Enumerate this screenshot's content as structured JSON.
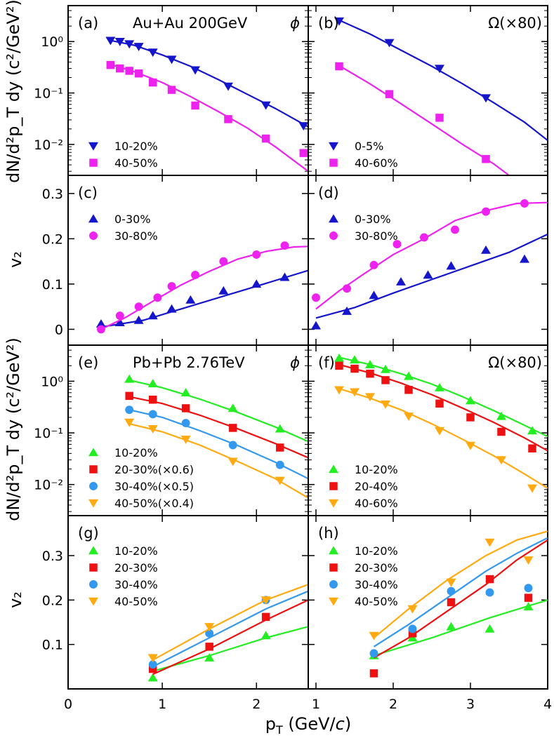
{
  "figure": {
    "xlabel_main": "p",
    "xlabel_sub": "T",
    "xlabel_unit_pre": " (GeV/",
    "xlabel_unit_italic": "c",
    "xlabel_unit_post": ")",
    "ylabel_spectra": "dN/d²p_T dy (c²/GeV²)",
    "ylabel_v2": "v₂"
  },
  "chart_data": [
    {
      "id": "a",
      "type": "scatter",
      "yscale": "log",
      "ylim": [
        0.0025,
        5
      ],
      "xlim": [
        0,
        2.55
      ],
      "yticks": [
        0.01,
        0.1,
        1
      ],
      "ytick_labels": [
        "10⁻²",
        "10⁻¹",
        "10⁰"
      ],
      "letter": "(a)",
      "title": "Au+Au 200GeV",
      "particle": "ϕ",
      "legend_pos": "bottom-left",
      "series": [
        {
          "name": "10-20%",
          "marker": "tri_down",
          "color": "#1515cc",
          "x": [
            0.45,
            0.55,
            0.65,
            0.75,
            0.9,
            1.1,
            1.35,
            1.7,
            2.1,
            2.5
          ],
          "y": [
            1.05,
            1.0,
            0.9,
            0.8,
            0.62,
            0.45,
            0.28,
            0.135,
            0.058,
            0.023
          ],
          "fit_x": [
            0.45,
            0.7,
            1.0,
            1.3,
            1.6,
            1.9,
            2.2,
            2.55
          ],
          "fit_y": [
            1.05,
            0.85,
            0.55,
            0.33,
            0.18,
            0.095,
            0.05,
            0.022
          ]
        },
        {
          "name": "40-50%",
          "marker": "square",
          "color": "#ee22ee",
          "x": [
            0.45,
            0.55,
            0.65,
            0.75,
            0.9,
            1.1,
            1.35,
            1.7,
            2.1,
            2.5
          ],
          "y": [
            0.35,
            0.3,
            0.27,
            0.24,
            0.16,
            0.115,
            0.057,
            0.031,
            0.013,
            0.0068
          ],
          "fit_x": [
            0.45,
            0.7,
            1.0,
            1.3,
            1.6,
            1.9,
            2.2,
            2.55
          ],
          "fit_y": [
            0.36,
            0.26,
            0.16,
            0.085,
            0.043,
            0.021,
            0.009,
            0.003
          ]
        }
      ]
    },
    {
      "id": "b",
      "type": "scatter",
      "yscale": "log",
      "ylim": [
        0.0025,
        5
      ],
      "xlim": [
        0.9,
        4
      ],
      "yticks": [
        0.01,
        0.1,
        1
      ],
      "ytick_labels": [],
      "letter": "(b)",
      "title": "Ω(×80)",
      "particle": "",
      "legend_pos": "bottom-left",
      "series": [
        {
          "name": "0-5%",
          "marker": "tri_down",
          "color": "#1515cc",
          "x": [
            1.3,
            1.95,
            2.6,
            3.2
          ],
          "y": [
            2.5,
            0.95,
            0.3,
            0.08
          ],
          "fit_x": [
            1.3,
            1.7,
            2.1,
            2.5,
            2.9,
            3.3,
            3.7,
            4.0
          ],
          "fit_y": [
            2.6,
            1.4,
            0.68,
            0.33,
            0.15,
            0.065,
            0.027,
            0.012
          ]
        },
        {
          "name": "40-60%",
          "marker": "square",
          "color": "#ee22ee",
          "x": [
            1.3,
            1.95,
            2.6,
            3.2
          ],
          "y": [
            0.33,
            0.095,
            0.033,
            0.0052
          ],
          "fit_x": [
            1.3,
            1.7,
            2.1,
            2.5,
            2.9,
            3.3,
            3.5
          ],
          "fit_y": [
            0.34,
            0.15,
            0.062,
            0.025,
            0.01,
            0.0042,
            0.0025
          ]
        }
      ]
    },
    {
      "id": "c",
      "type": "scatter",
      "yscale": "linear",
      "ylim": [
        -0.035,
        0.34
      ],
      "xlim": [
        0,
        2.55
      ],
      "yticks": [
        0,
        0.1,
        0.2,
        0.3
      ],
      "ytick_labels": [
        "0",
        "0.1",
        "0.2",
        "0.3"
      ],
      "letter": "(c)",
      "title": "",
      "particle": "",
      "legend_pos": "top-left",
      "series": [
        {
          "name": "0-30%",
          "marker": "tri_up",
          "color": "#1515cc",
          "x": [
            0.35,
            0.55,
            0.75,
            0.9,
            1.1,
            1.3,
            1.65,
            2.0,
            2.3
          ],
          "y": [
            0.012,
            0.015,
            0.02,
            0.03,
            0.045,
            0.065,
            0.085,
            0.1,
            0.115
          ],
          "fit_x": [
            0.35,
            0.8,
            1.2,
            1.6,
            2.0,
            2.55
          ],
          "fit_y": [
            0.005,
            0.02,
            0.045,
            0.07,
            0.095,
            0.13
          ]
        },
        {
          "name": "30-80%",
          "marker": "circle",
          "color": "#ee22ee",
          "x": [
            0.35,
            0.55,
            0.75,
            0.95,
            1.1,
            1.35,
            1.65,
            2.0,
            2.3
          ],
          "y": [
            0.0,
            0.03,
            0.05,
            0.07,
            0.095,
            0.12,
            0.15,
            0.165,
            0.185
          ],
          "fit_x": [
            0.35,
            0.6,
            0.9,
            1.2,
            1.5,
            1.8,
            2.1,
            2.4,
            2.55
          ],
          "fit_y": [
            0.0,
            0.025,
            0.062,
            0.098,
            0.128,
            0.155,
            0.172,
            0.182,
            0.183
          ]
        }
      ]
    },
    {
      "id": "d",
      "type": "scatter",
      "yscale": "linear",
      "ylim": [
        -0.035,
        0.34
      ],
      "xlim": [
        0.9,
        4
      ],
      "yticks": [
        0,
        0.1,
        0.2,
        0.3
      ],
      "ytick_labels": [],
      "letter": "(d)",
      "title": "",
      "particle": "",
      "legend_pos": "top-left",
      "series": [
        {
          "name": "0-30%",
          "marker": "tri_up",
          "color": "#1515cc",
          "x": [
            1.0,
            1.4,
            1.75,
            2.1,
            2.45,
            2.75,
            3.2,
            3.7
          ],
          "y": [
            0.008,
            0.04,
            0.075,
            0.105,
            0.12,
            0.14,
            0.175,
            0.155
          ],
          "fit_x": [
            1.0,
            1.5,
            2.0,
            2.5,
            3.0,
            3.5,
            4.0
          ],
          "fit_y": [
            0.025,
            0.048,
            0.08,
            0.11,
            0.14,
            0.17,
            0.21
          ]
        },
        {
          "name": "30-80%",
          "marker": "circle",
          "color": "#ee22ee",
          "x": [
            1.0,
            1.4,
            1.75,
            2.05,
            2.4,
            2.8,
            3.2,
            3.7
          ],
          "y": [
            0.07,
            0.09,
            0.142,
            0.188,
            0.203,
            0.22,
            0.26,
            0.278
          ],
          "fit_x": [
            1.0,
            1.3,
            1.6,
            2.0,
            2.4,
            2.8,
            3.2,
            3.6,
            4.0
          ],
          "fit_y": [
            0.045,
            0.085,
            0.12,
            0.165,
            0.2,
            0.24,
            0.262,
            0.278,
            0.28
          ]
        }
      ]
    },
    {
      "id": "e",
      "type": "scatter",
      "yscale": "log",
      "ylim": [
        0.0025,
        5
      ],
      "xlim": [
        0,
        2.55
      ],
      "yticks": [
        0.01,
        0.1,
        1
      ],
      "ytick_labels": [
        "10⁻²",
        "10⁻¹",
        "10⁰"
      ],
      "letter": "(e)",
      "title": "Pb+Pb 2.76TeV",
      "particle": "ϕ",
      "legend_pos": "bottom-left",
      "series": [
        {
          "name": "10-20%",
          "marker": "tri_up",
          "color": "#22ee22",
          "x": [
            0.65,
            0.9,
            1.25,
            1.75,
            2.25
          ],
          "y": [
            1.1,
            0.9,
            0.6,
            0.3,
            0.12
          ],
          "fit_x": [
            0.65,
            1.0,
            1.4,
            1.8,
            2.2,
            2.55
          ],
          "fit_y": [
            1.05,
            0.75,
            0.45,
            0.25,
            0.13,
            0.068
          ]
        },
        {
          "name": "20-30%(×0.6)",
          "marker": "square",
          "color": "#ee1111",
          "x": [
            0.65,
            0.9,
            1.25,
            1.75,
            2.25
          ],
          "y": [
            0.52,
            0.44,
            0.3,
            0.125,
            0.052
          ],
          "fit_x": [
            0.65,
            1.0,
            1.4,
            1.8,
            2.2,
            2.55
          ],
          "fit_y": [
            0.5,
            0.37,
            0.22,
            0.12,
            0.062,
            0.033
          ]
        },
        {
          "name": "30-40%(×0.5)",
          "marker": "circle",
          "color": "#3399ee",
          "x": [
            0.65,
            0.9,
            1.25,
            1.75,
            2.25
          ],
          "y": [
            0.28,
            0.23,
            0.155,
            0.058,
            0.024
          ],
          "fit_x": [
            0.65,
            1.0,
            1.4,
            1.8,
            2.2,
            2.55
          ],
          "fit_y": [
            0.28,
            0.2,
            0.11,
            0.057,
            0.027,
            0.013
          ]
        },
        {
          "name": "40-50%(×0.4)",
          "marker": "tri_down",
          "color": "#ffaa11",
          "x": [
            0.65,
            0.9,
            1.25,
            1.75,
            2.25
          ],
          "y": [
            0.16,
            0.12,
            0.075,
            0.028,
            0.012
          ],
          "fit_x": [
            0.65,
            1.0,
            1.4,
            1.8,
            2.2,
            2.55
          ],
          "fit_y": [
            0.15,
            0.105,
            0.058,
            0.028,
            0.013,
            0.0055
          ]
        }
      ]
    },
    {
      "id": "f",
      "type": "scatter",
      "yscale": "log",
      "ylim": [
        0.0025,
        5
      ],
      "xlim": [
        0.9,
        4
      ],
      "yticks": [
        0.01,
        0.1,
        1
      ],
      "ytick_labels": [],
      "letter": "(f)",
      "title": "Ω(×80)",
      "particle": "",
      "legend_pos": "bottom-left",
      "series": [
        {
          "name": "10-20%",
          "marker": "tri_up",
          "color": "#22ee22",
          "x": [
            1.3,
            1.5,
            1.7,
            1.9,
            2.2,
            2.6,
            3.0,
            3.4,
            3.8
          ],
          "y": [
            2.8,
            2.6,
            2.1,
            1.7,
            1.25,
            0.75,
            0.42,
            0.21,
            0.11
          ],
          "fit_x": [
            1.3,
            1.7,
            2.1,
            2.5,
            2.9,
            3.3,
            3.7,
            4.0
          ],
          "fit_y": [
            2.9,
            2.1,
            1.4,
            0.88,
            0.5,
            0.27,
            0.14,
            0.085
          ]
        },
        {
          "name": "20-40%",
          "marker": "square",
          "color": "#ee1111",
          "x": [
            1.3,
            1.5,
            1.7,
            1.9,
            2.2,
            2.6,
            3.0,
            3.4,
            3.8
          ],
          "y": [
            2.0,
            1.75,
            1.4,
            1.05,
            0.68,
            0.37,
            0.2,
            0.105,
            0.05
          ],
          "fit_x": [
            1.3,
            1.7,
            2.1,
            2.5,
            2.9,
            3.3,
            3.7,
            4.0
          ],
          "fit_y": [
            2.1,
            1.45,
            0.92,
            0.55,
            0.3,
            0.16,
            0.08,
            0.045
          ]
        },
        {
          "name": "40-60%",
          "marker": "tri_down",
          "color": "#ffaa11",
          "x": [
            1.3,
            1.5,
            1.7,
            1.9,
            2.2,
            2.6,
            3.0,
            3.4,
            3.8
          ],
          "y": [
            0.68,
            0.62,
            0.5,
            0.36,
            0.21,
            0.11,
            0.057,
            0.03,
            0.0085
          ],
          "fit_x": [
            1.3,
            1.7,
            2.1,
            2.5,
            2.9,
            3.3,
            3.7,
            4.0
          ],
          "fit_y": [
            0.72,
            0.47,
            0.28,
            0.15,
            0.075,
            0.036,
            0.016,
            0.0085
          ]
        }
      ]
    },
    {
      "id": "g",
      "type": "scatter",
      "yscale": "linear",
      "ylim": [
        0,
        0.39
      ],
      "xlim": [
        0,
        2.55
      ],
      "yticks": [
        0.1,
        0.2,
        0.3
      ],
      "ytick_labels": [
        "0.1",
        "0.2",
        "0.3"
      ],
      "xticks": [
        0,
        1,
        2
      ],
      "xtick_labels": [
        "0",
        "1",
        "2"
      ],
      "letter": "(g)",
      "title": "",
      "particle": "",
      "legend_pos": "top-left",
      "series": [
        {
          "name": "10-20%",
          "marker": "tri_up",
          "color": "#22ee22",
          "x": [
            0.9,
            1.5,
            2.1
          ],
          "y": [
            0.025,
            0.07,
            0.12
          ],
          "fit_x": [
            0.9,
            1.5,
            2.1,
            2.55
          ],
          "fit_y": [
            0.04,
            0.075,
            0.115,
            0.14
          ]
        },
        {
          "name": "20-30%",
          "marker": "square",
          "color": "#ee1111",
          "x": [
            0.9,
            1.5,
            2.1
          ],
          "y": [
            0.045,
            0.095,
            0.162
          ],
          "fit_x": [
            0.9,
            1.5,
            2.1,
            2.55
          ],
          "fit_y": [
            0.033,
            0.09,
            0.155,
            0.2
          ]
        },
        {
          "name": "30-40%",
          "marker": "circle",
          "color": "#3399ee",
          "x": [
            0.9,
            1.5,
            2.1
          ],
          "y": [
            0.055,
            0.125,
            0.2
          ],
          "fit_x": [
            0.9,
            1.5,
            2.1,
            2.55
          ],
          "fit_y": [
            0.05,
            0.115,
            0.18,
            0.22
          ]
        },
        {
          "name": "40-50%",
          "marker": "tri_down",
          "color": "#ffaa11",
          "x": [
            0.9,
            1.5,
            2.1
          ],
          "y": [
            0.07,
            0.14,
            0.2
          ],
          "fit_x": [
            0.9,
            1.5,
            2.1,
            2.55
          ],
          "fit_y": [
            0.065,
            0.135,
            0.2,
            0.235
          ]
        }
      ]
    },
    {
      "id": "h",
      "type": "scatter",
      "yscale": "linear",
      "ylim": [
        0,
        0.39
      ],
      "xlim": [
        0.9,
        4
      ],
      "yticks": [
        0.1,
        0.2,
        0.3
      ],
      "ytick_labels": [],
      "xticks": [
        1,
        2,
        3,
        4
      ],
      "xtick_labels": [
        "1",
        "2",
        "3",
        "4"
      ],
      "letter": "(h)",
      "title": "",
      "particle": "",
      "legend_pos": "top-left",
      "series": [
        {
          "name": "10-20%",
          "marker": "tri_up",
          "color": "#22ee22",
          "x": [
            1.75,
            2.25,
            2.75,
            3.25,
            3.75
          ],
          "y": [
            0.075,
            0.115,
            0.14,
            0.135,
            0.185
          ],
          "fit_x": [
            1.75,
            2.5,
            3.25,
            4.0
          ],
          "fit_y": [
            0.075,
            0.115,
            0.16,
            0.2
          ]
        },
        {
          "name": "20-30%",
          "marker": "square",
          "color": "#ee1111",
          "x": [
            1.75,
            2.25,
            2.75,
            3.25,
            3.75
          ],
          "y": [
            0.035,
            0.125,
            0.195,
            0.247,
            0.205
          ],
          "fit_x": [
            1.75,
            2.2,
            2.7,
            3.2,
            3.6,
            4.0
          ],
          "fit_y": [
            0.07,
            0.115,
            0.175,
            0.235,
            0.29,
            0.335
          ]
        },
        {
          "name": "30-40%",
          "marker": "circle",
          "color": "#3399ee",
          "x": [
            1.75,
            2.25,
            2.75,
            3.25,
            3.75
          ],
          "y": [
            0.08,
            0.135,
            0.22,
            0.217,
            0.227
          ],
          "fit_x": [
            1.75,
            2.2,
            2.7,
            3.2,
            3.6,
            4.0
          ],
          "fit_y": [
            0.095,
            0.145,
            0.205,
            0.265,
            0.305,
            0.34
          ]
        },
        {
          "name": "40-50%",
          "marker": "tri_down",
          "color": "#ffaa11",
          "x": [
            1.75,
            2.25,
            2.75,
            3.25,
            3.75
          ],
          "y": [
            0.12,
            0.18,
            0.24,
            0.33,
            0.29
          ],
          "fit_x": [
            1.75,
            2.2,
            2.7,
            3.2,
            3.6,
            4.0
          ],
          "fit_y": [
            0.115,
            0.18,
            0.245,
            0.3,
            0.335,
            0.355
          ]
        }
      ]
    }
  ]
}
